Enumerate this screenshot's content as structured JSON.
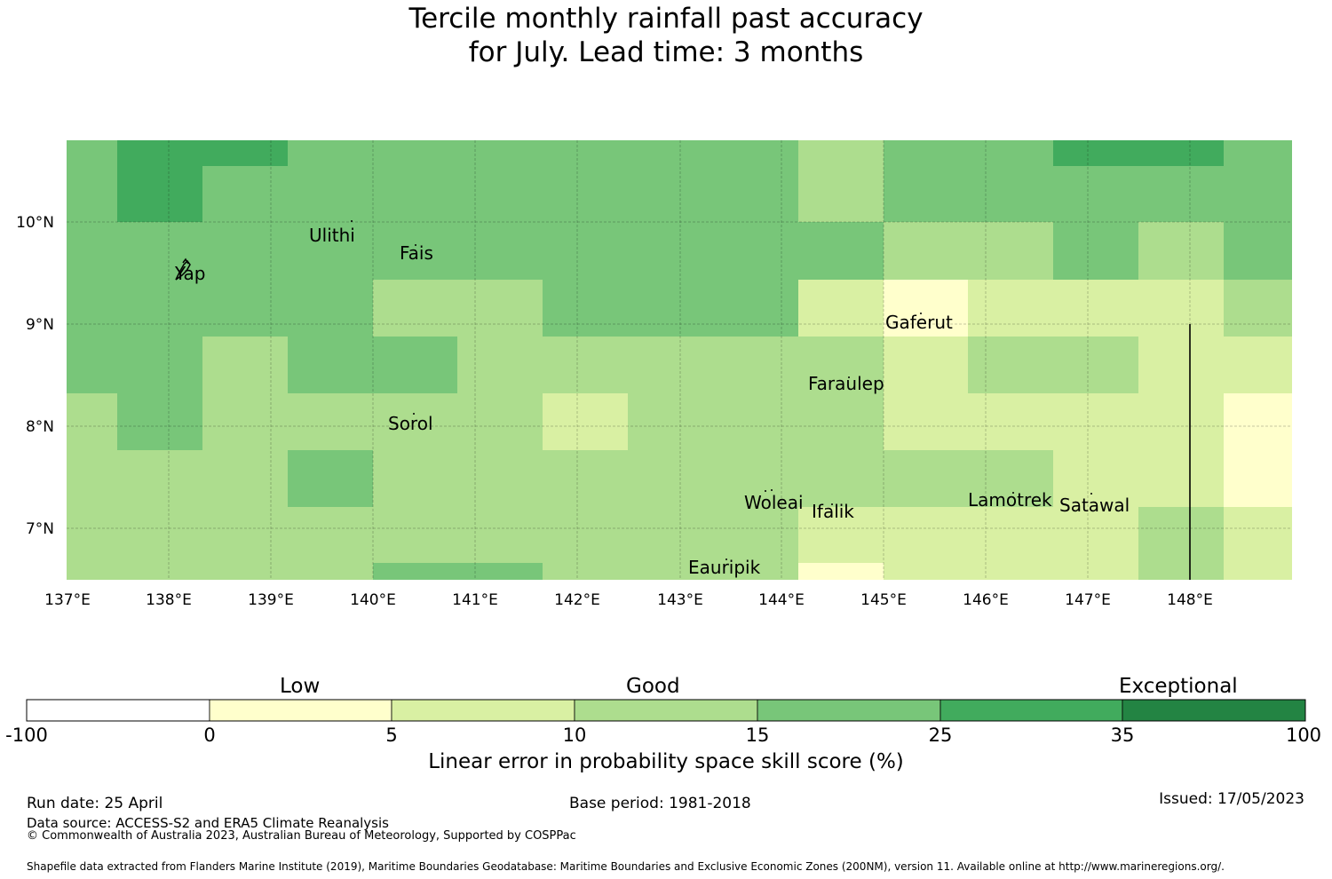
{
  "title_line1": "Tercile monthly rainfall past accuracy",
  "title_line2": "for July. Lead time: 3 months",
  "map": {
    "lon_ticks": [
      "137°E",
      "138°E",
      "139°E",
      "140°E",
      "141°E",
      "142°E",
      "143°E",
      "144°E",
      "145°E",
      "146°E",
      "147°E",
      "148°E"
    ],
    "lat_ticks": [
      "10°N",
      "9°N",
      "8°N",
      "7°N"
    ],
    "places": [
      "Yap",
      "Ulithi",
      "Fais",
      "Sorol",
      "Gaferut",
      "Faraulep",
      "Woleai",
      "Ifalik",
      "Eauripik",
      "Lamotrek",
      "Satawal"
    ],
    "colors": [
      "#ffffcc",
      "#d9f0a3",
      "#addd8e",
      "#78c679",
      "#41ab5d",
      "#238443"
    ]
  },
  "colorbar": {
    "categories": [
      "Low",
      "Good",
      "Exceptional"
    ],
    "ticks": [
      "-100",
      "0",
      "5",
      "10",
      "15",
      "25",
      "35",
      "100"
    ],
    "colors": [
      "#ffffff",
      "#ffffcc",
      "#d9f0a3",
      "#addd8e",
      "#78c679",
      "#41ab5d",
      "#238443"
    ],
    "title": "Linear error in probability space skill score (%)"
  },
  "footer": {
    "run_date": "Run date: 25 April",
    "base_period": "Base period: 1981-2018",
    "issued": "Issued: 17/05/2023",
    "data_source": "Data source: ACCESS-S2 and ERA5 Climate Reanalysis",
    "copyright": "© Commonwealth of Australia 2023, Australian Bureau of Meteorology, Supported by COSPPac",
    "shapefile": "Shapefile data extracted from Flanders Marine Institute (2019), Maritime Boundaries Geodatabase: Maritime Boundaries and Exclusive Economic Zones (200NM), version 11. Available online at http://www.marineregions.org/."
  }
}
